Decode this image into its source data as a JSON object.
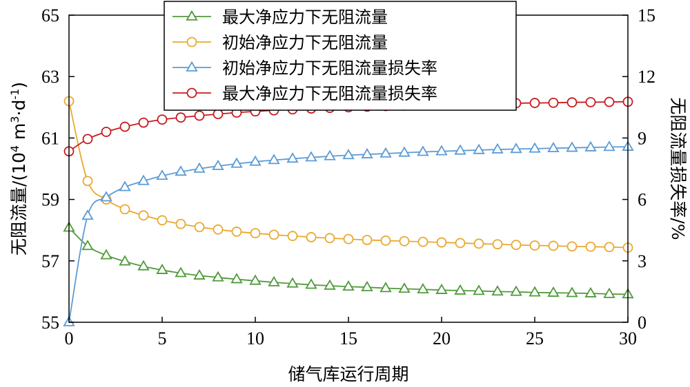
{
  "chart_data": {
    "type": "line",
    "xlabel": "储气库运行周期",
    "ylabel_left_main": "无阻流量/(10",
    "ylabel_left_sup1": "4",
    "ylabel_left_mid": " m",
    "ylabel_left_sup2": "3",
    "ylabel_left_mid2": "·d",
    "ylabel_left_sup3": "-1",
    "ylabel_left_end": ")",
    "ylabel_right": "无阻流量损失率/%",
    "xlim": [
      0,
      30
    ],
    "ylim_left": [
      55,
      65
    ],
    "ylim_right": [
      0,
      15
    ],
    "x_ticks": [
      "0",
      "5",
      "10",
      "15",
      "20",
      "25",
      "30"
    ],
    "y_left_ticks": [
      "55",
      "57",
      "59",
      "61",
      "63",
      "65"
    ],
    "y_right_ticks": [
      "0",
      "3",
      "6",
      "9",
      "12",
      "15"
    ],
    "legend_position": "top-center",
    "x": [
      0,
      1,
      2,
      3,
      4,
      5,
      6,
      7,
      8,
      9,
      10,
      11,
      12,
      13,
      14,
      15,
      16,
      17,
      18,
      19,
      20,
      21,
      22,
      23,
      24,
      25,
      26,
      27,
      28,
      29,
      30
    ],
    "series": [
      {
        "name": "最大净应力下无阻流量",
        "axis": "left",
        "marker": "triangle",
        "color": "#4f9a3a",
        "values": [
          58.08,
          57.48,
          57.18,
          56.98,
          56.82,
          56.7,
          56.6,
          56.52,
          56.46,
          56.4,
          56.35,
          56.3,
          56.26,
          56.22,
          56.19,
          56.16,
          56.14,
          56.11,
          56.09,
          56.07,
          56.05,
          56.03,
          56.02,
          56.0,
          55.99,
          55.97,
          55.96,
          55.95,
          55.94,
          55.92,
          55.91
        ]
      },
      {
        "name": "初始净应力下无阻流量",
        "axis": "left",
        "marker": "circle",
        "color": "#e8a92e",
        "values": [
          62.2,
          59.6,
          59.0,
          58.68,
          58.48,
          58.32,
          58.2,
          58.1,
          58.02,
          57.95,
          57.9,
          57.85,
          57.81,
          57.77,
          57.74,
          57.71,
          57.68,
          57.66,
          57.64,
          57.62,
          57.6,
          57.58,
          57.56,
          57.54,
          57.52,
          57.5,
          57.49,
          57.47,
          57.46,
          57.45,
          57.43
        ]
      },
      {
        "name": "初始净应力下无阻流量损失率",
        "axis": "right",
        "marker": "triangle",
        "color": "#5b9bd5",
        "values": [
          0,
          5.2,
          6.1,
          6.6,
          6.9,
          7.15,
          7.35,
          7.5,
          7.63,
          7.74,
          7.84,
          7.92,
          7.99,
          8.05,
          8.11,
          8.16,
          8.2,
          8.24,
          8.28,
          8.32,
          8.35,
          8.38,
          8.41,
          8.44,
          8.46,
          8.48,
          8.5,
          8.52,
          8.54,
          8.56,
          8.57
        ]
      },
      {
        "name": "最大净应力下无阻流量损失率",
        "axis": "right",
        "marker": "circle",
        "color": "#c8191d",
        "values": [
          8.35,
          8.95,
          9.3,
          9.55,
          9.75,
          9.9,
          10.0,
          10.09,
          10.17,
          10.24,
          10.3,
          10.35,
          10.4,
          10.44,
          10.47,
          10.5,
          10.53,
          10.56,
          10.58,
          10.61,
          10.63,
          10.65,
          10.66,
          10.68,
          10.7,
          10.71,
          10.72,
          10.74,
          10.75,
          10.76,
          10.77
        ]
      }
    ]
  }
}
